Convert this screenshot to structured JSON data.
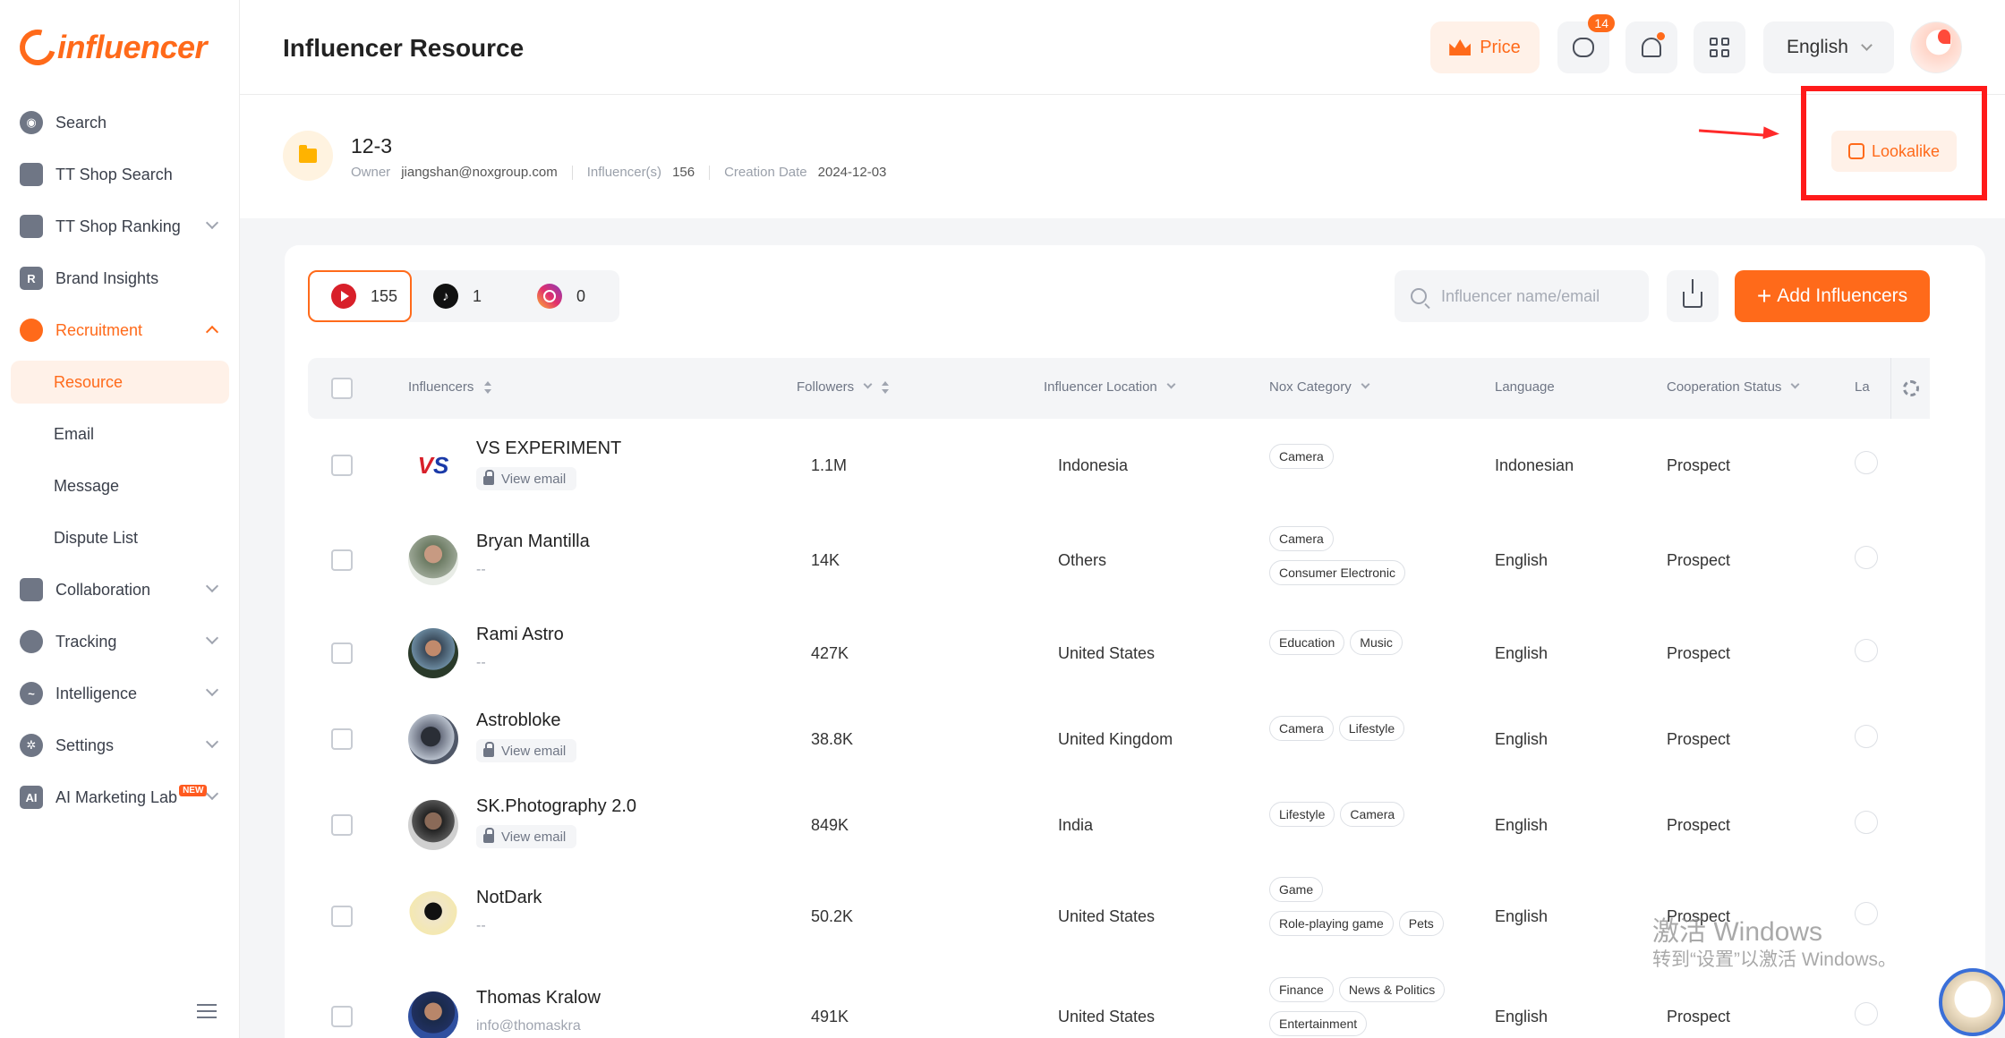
{
  "brand": {
    "name": "influencer"
  },
  "sidebar": {
    "items": [
      {
        "label": "Search",
        "icon": "compass-icon"
      },
      {
        "label": "TT Shop Search",
        "icon": "shop-bag-icon"
      },
      {
        "label": "TT Shop Ranking",
        "icon": "bar-chart-icon"
      },
      {
        "label": "Brand Insights",
        "icon": "brand-r-icon"
      },
      {
        "label": "Recruitment",
        "icon": "users-icon"
      },
      {
        "label": "Collaboration",
        "icon": "document-icon"
      },
      {
        "label": "Tracking",
        "icon": "tracking-icon"
      },
      {
        "label": "Intelligence",
        "icon": "pulse-icon"
      },
      {
        "label": "Settings",
        "icon": "gear-icon"
      },
      {
        "label": "AI Marketing Lab",
        "icon": "ai-icon",
        "badge": "NEW"
      }
    ],
    "recruitment_sub": [
      "Resource",
      "Email",
      "Message",
      "Dispute List"
    ]
  },
  "header": {
    "title": "Influencer Resource",
    "price_label": "Price",
    "message_count": "14",
    "language": "English"
  },
  "list_info": {
    "name": "12-3",
    "owner_label": "Owner",
    "owner": "jiangshan@noxgroup.com",
    "influencers_label": "Influencer(s)",
    "influencers_count": "156",
    "creation_label": "Creation Date",
    "creation_date": "2024-12-03",
    "lookalike_label": "Lookalike"
  },
  "platforms": [
    {
      "name": "youtube",
      "count": "155"
    },
    {
      "name": "tiktok",
      "count": "1"
    },
    {
      "name": "instagram",
      "count": "0"
    }
  ],
  "search": {
    "placeholder": "Influencer name/email"
  },
  "add_button": "Add Influencers",
  "table": {
    "columns": {
      "influencers": "Influencers",
      "followers": "Followers",
      "location": "Influencer Location",
      "category": "Nox Category",
      "language": "Language",
      "coop": "Cooperation Status",
      "la": "La"
    },
    "rows": [
      {
        "name": "VS EXPERIMENT",
        "contact": "View email",
        "followers": "1.1M",
        "location": "Indonesia",
        "categories": [
          "Camera"
        ],
        "language": "Indonesian",
        "status": "Prospect"
      },
      {
        "name": "Bryan Mantilla",
        "contact": "--",
        "followers": "14K",
        "location": "Others",
        "categories": [
          "Camera",
          "Consumer Electronic"
        ],
        "language": "English",
        "status": "Prospect"
      },
      {
        "name": "Rami Astro",
        "contact": "--",
        "followers": "427K",
        "location": "United States",
        "categories": [
          "Education",
          "Music"
        ],
        "language": "English",
        "status": "Prospect"
      },
      {
        "name": "Astrobloke",
        "contact": "View email",
        "followers": "38.8K",
        "location": "United Kingdom",
        "categories": [
          "Camera",
          "Lifestyle"
        ],
        "language": "English",
        "status": "Prospect"
      },
      {
        "name": "SK.Photography 2.0",
        "contact": "View email",
        "followers": "849K",
        "location": "India",
        "categories": [
          "Lifestyle",
          "Camera"
        ],
        "language": "English",
        "status": "Prospect"
      },
      {
        "name": "NotDark",
        "contact": "--",
        "followers": "50.2K",
        "location": "United States",
        "categories": [
          "Game",
          "Role-playing game",
          "Pets"
        ],
        "language": "English",
        "status": "Prospect"
      },
      {
        "name": "Thomas Kralow",
        "contact": "info@thomaskra",
        "followers": "491K",
        "location": "United States",
        "categories": [
          "Finance",
          "News & Politics",
          "Entertainment"
        ],
        "language": "English",
        "status": "Prospect"
      }
    ]
  },
  "watermark": {
    "line1": "激活 Windows",
    "line2": "转到“设置”以激活 Windows。"
  }
}
